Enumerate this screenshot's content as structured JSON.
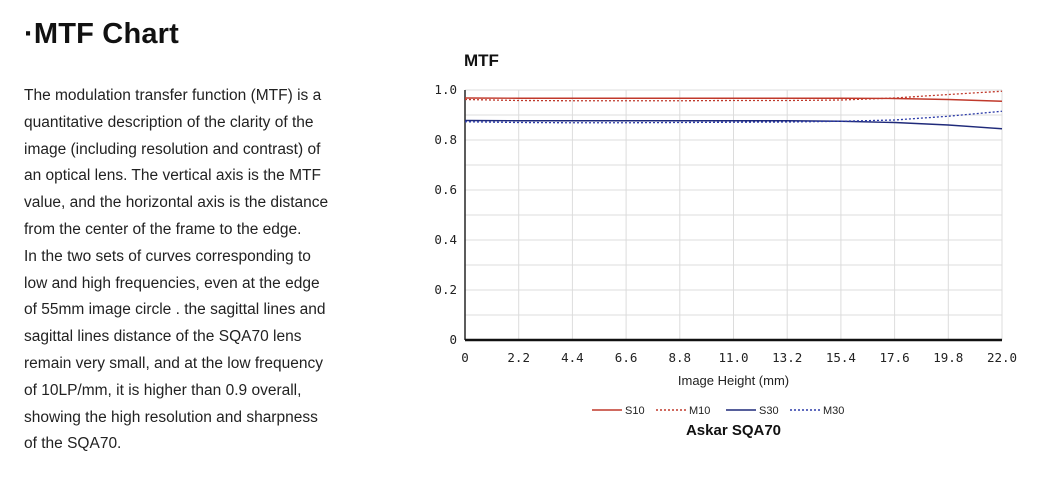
{
  "page": {
    "heading": "·MTF Chart",
    "description_lines": [
      "The modulation transfer function (MTF) is a",
      "quantitative description of the clarity of the",
      "image (including resolution and contrast) of",
      "an optical lens. The vertical axis is the MTF",
      "value, and the horizontal axis is the distance",
      "from the center of the frame to the edge.",
      "In the two sets of curves corresponding to",
      "low and high frequencies, even at the edge",
      "of 55mm image circle . the sagittal lines and",
      "sagittal lines distance of the SQA70 lens",
      "remain very small, and at the low frequency",
      "of 10LP/mm, it is higher than 0.9 overall,",
      "showing the high resolution and sharpness",
      "of the SQA70."
    ]
  },
  "chart_data": {
    "type": "line",
    "title": "MTF",
    "subtitle": "Askar SQA70",
    "xlabel": "Image Height (mm)",
    "ylabel": "",
    "xlim": [
      0,
      22.0
    ],
    "ylim": [
      0,
      1.0
    ],
    "x_ticks": [
      "0",
      "2.2",
      "4.4",
      "6.6",
      "8.8",
      "11.0",
      "13.2",
      "15.4",
      "17.6",
      "19.8",
      "22.0"
    ],
    "y_ticks": [
      "0",
      "0.2",
      "0.4",
      "0.6",
      "0.8",
      "1.0"
    ],
    "grid": true,
    "legend_position": "bottom",
    "x": [
      0,
      2.2,
      4.4,
      6.6,
      8.8,
      11.0,
      13.2,
      15.4,
      17.6,
      19.8,
      22.0
    ],
    "series": [
      {
        "name": "S10",
        "color": "#c0392b",
        "dash": "solid",
        "values": [
          0.968,
          0.967,
          0.967,
          0.967,
          0.967,
          0.967,
          0.967,
          0.967,
          0.966,
          0.962,
          0.955
        ]
      },
      {
        "name": "M10",
        "color": "#c0392b",
        "dash": "dotted",
        "values": [
          0.962,
          0.958,
          0.957,
          0.957,
          0.957,
          0.958,
          0.958,
          0.96,
          0.968,
          0.982,
          0.995
        ]
      },
      {
        "name": "S30",
        "color": "#1f2a7a",
        "dash": "solid",
        "values": [
          0.878,
          0.877,
          0.877,
          0.877,
          0.877,
          0.877,
          0.877,
          0.875,
          0.87,
          0.86,
          0.845
        ]
      },
      {
        "name": "M30",
        "color": "#2b3aa8",
        "dash": "dotted",
        "values": [
          0.873,
          0.87,
          0.869,
          0.869,
          0.87,
          0.871,
          0.872,
          0.875,
          0.88,
          0.895,
          0.915
        ]
      }
    ]
  }
}
